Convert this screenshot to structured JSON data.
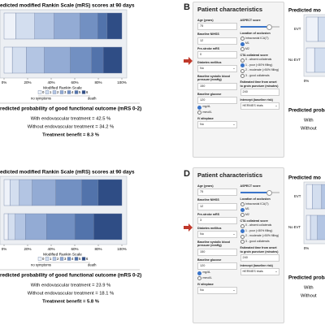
{
  "mrs_colors": [
    "#eef2f9",
    "#d3deef",
    "#b3c5e3",
    "#93abd4",
    "#7290c2",
    "#5273ab",
    "#2f4d85"
  ],
  "outcome_panels": [
    {
      "title": "edicted modified Rankin Scale (mRS) scores at 90 days",
      "rows": [
        {
          "values": [
            10,
            16,
            16.5,
            22,
            15,
            8,
            12.5
          ]
        },
        {
          "values": [
            7,
            12,
            15.2,
            22,
            18,
            10,
            15.8
          ]
        }
      ],
      "xlim": [
        0,
        100
      ],
      "xticks": [
        {
          "value": 0,
          "label": "0%"
        },
        {
          "value": 20,
          "label": "20%"
        },
        {
          "value": 40,
          "label": "40%"
        },
        {
          "value": 60,
          "label": "60%"
        },
        {
          "value": 80,
          "label": "80%"
        },
        {
          "value": 100,
          "label": "100%"
        }
      ],
      "legend_title": "Modified Rankin Scale",
      "legend_labels": [
        "0",
        "1",
        "2",
        "3",
        "4",
        "5",
        "6"
      ],
      "left_note": "no symptoms",
      "right_note": "death",
      "result_title": "redicted probability of good functional outcome (mRS 0-2)",
      "with_text": "With endovascular treatment = 42.5 %",
      "without_text": "Without endovascular treatment = 34.2 %",
      "benefit_text": "Treatment benefit = 8.3 %"
    },
    {
      "title": "edicted modified Rankin Scale (mRS) scores at 90 days",
      "rows": [
        {
          "values": [
            5,
            8,
            10.9,
            20,
            22,
            14,
            20.1
          ]
        },
        {
          "values": [
            3.5,
            6,
            8.6,
            18,
            24,
            16,
            23.9
          ]
        }
      ],
      "xlim": [
        0,
        100
      ],
      "xticks": [
        {
          "value": 0,
          "label": "0%"
        },
        {
          "value": 20,
          "label": "20%"
        },
        {
          "value": 40,
          "label": "40%"
        },
        {
          "value": 60,
          "label": "60%"
        },
        {
          "value": 80,
          "label": "80%"
        },
        {
          "value": 100,
          "label": "100%"
        }
      ],
      "legend_title": "Modified Rankin Scale",
      "legend_labels": [
        "0",
        "1",
        "2",
        "3",
        "4",
        "5",
        "6"
      ],
      "left_note": "no symptoms",
      "right_note": "death",
      "result_title": "redicted probability of good functional outcome (mRS 0-2)",
      "with_text": "With endovascular treatment = 23.9 %",
      "without_text": "Without endovascular treatment = 18.1 %",
      "benefit_text": "Treatment benefit = 5.8 %"
    }
  ],
  "form_panels": [
    {
      "letter": "B",
      "title": "Patient characteristics",
      "left_fields": [
        {
          "label": "Age (years)",
          "value": "75"
        },
        {
          "label": "Baseline NIHSS",
          "value": "12"
        },
        {
          "label": "Pre-stroke mRS",
          "value": "0"
        },
        {
          "label": "Diabetes mellitus",
          "value": "No",
          "select": true
        },
        {
          "label": "Baseline systolic blood pressure (mmHg)",
          "value": "150"
        },
        {
          "label": "Baseline glucose",
          "value": "120",
          "options": [
            "mg/dL",
            "mmol/L"
          ],
          "selected": 0
        },
        {
          "label": "IV alteplase",
          "value": "No",
          "select": true
        }
      ],
      "right_fields": [
        {
          "label": "ASPECT score",
          "slider": true
        },
        {
          "label": "Location of occlusion",
          "options": [
            "Intracranial ICA(T)",
            "M1",
            "M2"
          ],
          "selected": 1
        },
        {
          "label": "CTA collateral score",
          "options": [
            "0 - absent collaterals",
            "1 - poor (<50% filling)",
            "2 - moderate (>50% filling)",
            "3 - good collaterals"
          ],
          "selected": 1
        },
        {
          "label": "Estimated time from onset to groin puncture (minutes)",
          "value": "240"
        },
        {
          "label": "Intercept (baseline risk)",
          "value": "HERMES trials",
          "select": true
        }
      ],
      "preview": {
        "title": "Predicted mo",
        "row_labels": [
          "EVT",
          "No EVT"
        ],
        "tick": "0%",
        "result_title": "Predicted proba",
        "with": "With",
        "without": "Without"
      }
    },
    {
      "letter": "D",
      "title": "Patient characteristics",
      "left_fields": [
        {
          "label": "Age (years)",
          "value": "75"
        },
        {
          "label": "Baseline NIHSS",
          "value": "12"
        },
        {
          "label": "Pre-stroke mRS",
          "value": "3"
        },
        {
          "label": "Diabetes mellitus",
          "value": "No",
          "select": true
        },
        {
          "label": "Baseline systolic blood pressure (mmHg)",
          "value": "150"
        },
        {
          "label": "Baseline glucose",
          "value": "120",
          "options": [
            "mg/dL",
            "mmol/L"
          ],
          "selected": 0
        },
        {
          "label": "IV alteplase",
          "value": "No",
          "select": true
        }
      ],
      "right_fields": [
        {
          "label": "ASPECT score",
          "slider": true
        },
        {
          "label": "Location of occlusion",
          "options": [
            "Intracranial ICA(T)",
            "M1",
            "M2"
          ],
          "selected": 1
        },
        {
          "label": "CTA collateral score",
          "options": [
            "0 - absent collaterals",
            "1 - poor (<50% filling)",
            "2 - moderate (>50% filling)",
            "3 - good collaterals"
          ],
          "selected": 1
        },
        {
          "label": "Estimated time from onset to groin puncture (minutes)",
          "value": "240"
        },
        {
          "label": "Intercept (baseline risk)",
          "value": "HERMES trials",
          "select": true
        }
      ],
      "preview": {
        "title": "Predicted mo",
        "row_labels": [
          "EVT",
          "No EVT"
        ],
        "tick": "0%",
        "result_title": "Predicted proba",
        "with": "With",
        "without": "Without"
      }
    }
  ]
}
